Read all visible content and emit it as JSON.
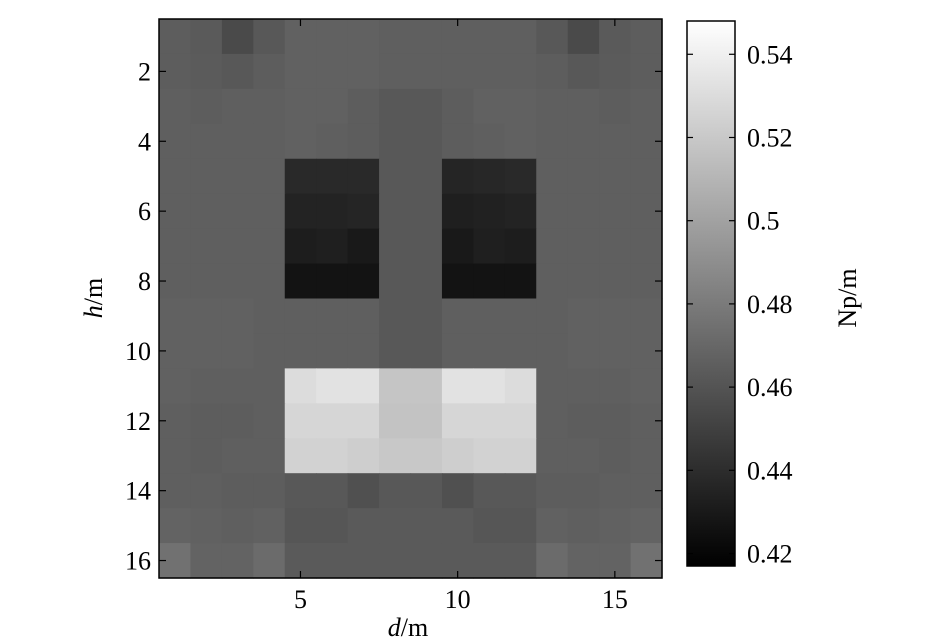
{
  "chart_data": {
    "type": "heatmap",
    "title": "",
    "xlabel": "d/m",
    "ylabel": "h/m",
    "xlabel_var": "d",
    "xlabel_unit": "/m",
    "ylabel_var": "h",
    "ylabel_unit": "/m",
    "colorbar_label": "Np/m",
    "colormap": "gray",
    "clim": [
      0.417,
      0.548
    ],
    "xlim": [
      0.5,
      16.5
    ],
    "ylim": [
      16.5,
      0.5
    ],
    "x_ticks": [
      5,
      10,
      15
    ],
    "y_ticks": [
      2,
      4,
      6,
      8,
      10,
      12,
      14,
      16
    ],
    "colorbar_ticks": [
      "0.42",
      "0.44",
      "0.46",
      "0.48",
      "0.5",
      "0.52",
      "0.54"
    ],
    "colorbar_tick_values": [
      0.42,
      0.44,
      0.46,
      0.48,
      0.5,
      0.52,
      0.54
    ],
    "y_axis_reversed": true,
    "rows": 16,
    "cols": 16,
    "values": [
      [
        0.465,
        0.463,
        0.455,
        0.462,
        0.467,
        0.467,
        0.467,
        0.466,
        0.466,
        0.466,
        0.466,
        0.466,
        0.462,
        0.455,
        0.463,
        0.465
      ],
      [
        0.465,
        0.464,
        0.462,
        0.465,
        0.467,
        0.467,
        0.467,
        0.466,
        0.466,
        0.466,
        0.466,
        0.466,
        0.465,
        0.462,
        0.464,
        0.465
      ],
      [
        0.466,
        0.465,
        0.466,
        0.466,
        0.467,
        0.467,
        0.465,
        0.462,
        0.462,
        0.465,
        0.467,
        0.467,
        0.466,
        0.466,
        0.465,
        0.466
      ],
      [
        0.466,
        0.466,
        0.466,
        0.466,
        0.467,
        0.466,
        0.465,
        0.462,
        0.462,
        0.465,
        0.466,
        0.467,
        0.466,
        0.466,
        0.466,
        0.466
      ],
      [
        0.466,
        0.466,
        0.466,
        0.466,
        0.438,
        0.438,
        0.438,
        0.462,
        0.462,
        0.436,
        0.437,
        0.438,
        0.466,
        0.466,
        0.466,
        0.466
      ],
      [
        0.466,
        0.466,
        0.466,
        0.466,
        0.435,
        0.435,
        0.436,
        0.462,
        0.462,
        0.433,
        0.434,
        0.435,
        0.466,
        0.466,
        0.466,
        0.466
      ],
      [
        0.466,
        0.466,
        0.466,
        0.466,
        0.432,
        0.433,
        0.43,
        0.462,
        0.462,
        0.43,
        0.433,
        0.432,
        0.466,
        0.466,
        0.466,
        0.466
      ],
      [
        0.466,
        0.466,
        0.466,
        0.466,
        0.427,
        0.427,
        0.427,
        0.462,
        0.462,
        0.427,
        0.427,
        0.427,
        0.466,
        0.466,
        0.466,
        0.466
      ],
      [
        0.467,
        0.467,
        0.467,
        0.466,
        0.466,
        0.466,
        0.466,
        0.462,
        0.462,
        0.466,
        0.466,
        0.466,
        0.466,
        0.467,
        0.467,
        0.467
      ],
      [
        0.467,
        0.467,
        0.467,
        0.466,
        0.466,
        0.466,
        0.466,
        0.462,
        0.462,
        0.466,
        0.466,
        0.466,
        0.466,
        0.467,
        0.467,
        0.467
      ],
      [
        0.467,
        0.466,
        0.466,
        0.466,
        0.53,
        0.533,
        0.533,
        0.518,
        0.518,
        0.533,
        0.533,
        0.53,
        0.466,
        0.466,
        0.466,
        0.467
      ],
      [
        0.466,
        0.465,
        0.465,
        0.466,
        0.527,
        0.527,
        0.527,
        0.517,
        0.517,
        0.527,
        0.527,
        0.527,
        0.466,
        0.465,
        0.465,
        0.466
      ],
      [
        0.466,
        0.465,
        0.466,
        0.466,
        0.525,
        0.525,
        0.523,
        0.52,
        0.52,
        0.523,
        0.525,
        0.525,
        0.466,
        0.466,
        0.465,
        0.466
      ],
      [
        0.466,
        0.466,
        0.465,
        0.465,
        0.462,
        0.462,
        0.458,
        0.462,
        0.462,
        0.458,
        0.462,
        0.462,
        0.465,
        0.465,
        0.466,
        0.466
      ],
      [
        0.468,
        0.467,
        0.466,
        0.467,
        0.461,
        0.461,
        0.463,
        0.463,
        0.463,
        0.463,
        0.461,
        0.461,
        0.467,
        0.466,
        0.467,
        0.468
      ],
      [
        0.475,
        0.468,
        0.468,
        0.472,
        0.463,
        0.463,
        0.463,
        0.463,
        0.463,
        0.463,
        0.463,
        0.463,
        0.472,
        0.468,
        0.468,
        0.475
      ]
    ]
  }
}
